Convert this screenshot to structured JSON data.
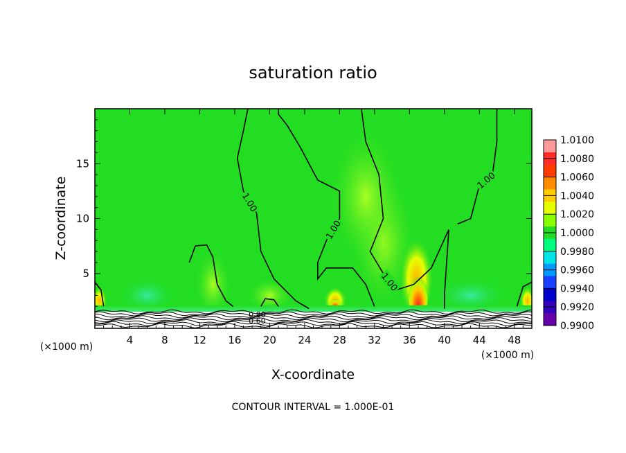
{
  "chart_data": {
    "type": "heatmap",
    "title": "saturation ratio",
    "xlabel": "X-coordinate",
    "ylabel": "Z-coordinate",
    "x_unit_label_left": "(×1000 m)",
    "x_unit_label_right": "(×1000 m)",
    "footer": "CONTOUR INTERVAL = 1.000E-01",
    "xlim": [
      0,
      50
    ],
    "ylim": [
      0,
      20
    ],
    "x_ticks": [
      4,
      8,
      12,
      16,
      20,
      24,
      28,
      32,
      36,
      40,
      44,
      48
    ],
    "y_ticks": [
      5,
      10,
      15
    ],
    "grid": false,
    "colorbar": {
      "placement": "right",
      "levels": [
        "1.0100",
        "1.0080",
        "1.0060",
        "1.0040",
        "1.0020",
        "1.0000",
        "0.9980",
        "0.9960",
        "0.9940",
        "0.9920",
        "0.9900"
      ],
      "colors": [
        "#ff9a9a",
        "#ff2a2a",
        "#ff3c00",
        "#ff8c00",
        "#ffcc00",
        "#e6ff00",
        "#8aff00",
        "#22dd22",
        "#00ff7f",
        "#00e6e6",
        "#0099ff",
        "#1a40ff",
        "#0000cc",
        "#3300bb",
        "#6600aa"
      ]
    },
    "background_color": "#22dd22",
    "contours": [
      {
        "label": "1.00",
        "points": [
          [
            17.5,
            20
          ],
          [
            17.0,
            18
          ],
          [
            16.3,
            15.5
          ],
          [
            17.0,
            12.5
          ],
          [
            18.5,
            10.5
          ],
          [
            19.0,
            7
          ],
          [
            20.5,
            4.5
          ],
          [
            23.0,
            2.5
          ],
          [
            24.5,
            1.8
          ]
        ]
      },
      {
        "label": "1.00",
        "points": [
          [
            21.0,
            20
          ],
          [
            21.0,
            19.5
          ],
          [
            22.0,
            18.5
          ],
          [
            23.5,
            16.5
          ],
          [
            25.5,
            13.5
          ],
          [
            28.0,
            12.5
          ],
          [
            28.0,
            10
          ],
          [
            26.5,
            8
          ],
          [
            25.5,
            6
          ],
          [
            25.5,
            4.5
          ],
          [
            26.5,
            5.5
          ],
          [
            29.5,
            5.5
          ],
          [
            31.0,
            4
          ],
          [
            32.0,
            2.0
          ]
        ]
      },
      {
        "label": "1.00",
        "points": [
          [
            30.5,
            20
          ],
          [
            31.0,
            17
          ],
          [
            32.5,
            14
          ],
          [
            33.0,
            10
          ],
          [
            31.5,
            7
          ],
          [
            33.0,
            5
          ],
          [
            34.5,
            3.5
          ],
          [
            36.5,
            4
          ],
          [
            38.5,
            5.5
          ],
          [
            40.5,
            9
          ],
          [
            40.0,
            3
          ],
          [
            40.0,
            1.8
          ]
        ]
      },
      {
        "label": "1.00",
        "points": [
          [
            46.0,
            20
          ],
          [
            46.0,
            17
          ],
          [
            45.5,
            14
          ],
          [
            44.0,
            13
          ],
          [
            43.0,
            10
          ],
          [
            41.5,
            9.5
          ]
        ]
      },
      {
        "label": "",
        "points": [
          [
            10.8,
            6.0
          ],
          [
            11.5,
            7.5
          ],
          [
            12.8,
            7.6
          ],
          [
            13.5,
            6.5
          ],
          [
            14.0,
            4
          ],
          [
            15.0,
            2.5
          ],
          [
            15.8,
            2.0
          ]
        ]
      },
      {
        "label": "",
        "points": [
          [
            19.0,
            2.0
          ],
          [
            19.5,
            2.7
          ],
          [
            20.5,
            2.6
          ],
          [
            21.0,
            2.0
          ]
        ]
      },
      {
        "label": "",
        "points": [
          [
            0.0,
            4.2
          ],
          [
            0.7,
            3.5
          ],
          [
            1.0,
            2.0
          ]
        ]
      },
      {
        "label": "",
        "points": [
          [
            50.0,
            4.2
          ],
          [
            49.0,
            3.8
          ],
          [
            48.3,
            2.0
          ]
        ]
      }
    ],
    "terrain_labels": [
      "0.80",
      "0.60"
    ]
  }
}
